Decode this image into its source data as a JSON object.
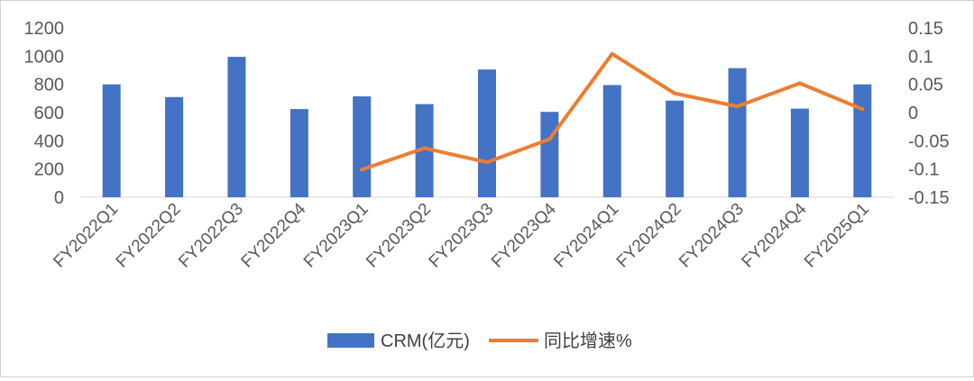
{
  "chart_data": {
    "type": "bar",
    "categories": [
      "FY2022Q1",
      "FY2022Q2",
      "FY2022Q3",
      "FY2022Q4",
      "FY2023Q1",
      "FY2023Q2",
      "FY2023Q3",
      "FY2023Q4",
      "FY2024Q1",
      "FY2024Q2",
      "FY2024Q3",
      "FY2024Q4",
      "FY2025Q1"
    ],
    "series": [
      {
        "name": "CRM(亿元)",
        "type": "bar",
        "axis": "left",
        "color": "#4472c4",
        "values": [
          800,
          710,
          995,
          625,
          715,
          660,
          905,
          605,
          795,
          685,
          915,
          628,
          800
        ]
      },
      {
        "name": "同比增速%",
        "type": "line",
        "axis": "right",
        "color": "#ed7d31",
        "values": [
          null,
          null,
          null,
          null,
          -0.101,
          -0.063,
          -0.088,
          -0.047,
          0.104,
          0.034,
          0.011,
          0.052,
          0.006
        ]
      }
    ],
    "y_left": {
      "min": 0,
      "max": 1200,
      "ticks": [
        "0",
        "200",
        "400",
        "600",
        "800",
        "1000",
        "1200"
      ]
    },
    "y_right": {
      "min": -0.15,
      "max": 0.15,
      "ticks": [
        "-0.15",
        "-0.1",
        "-0.05",
        "0",
        "0.05",
        "0.1",
        "0.15"
      ]
    },
    "grid": false,
    "legend_position": "bottom"
  }
}
